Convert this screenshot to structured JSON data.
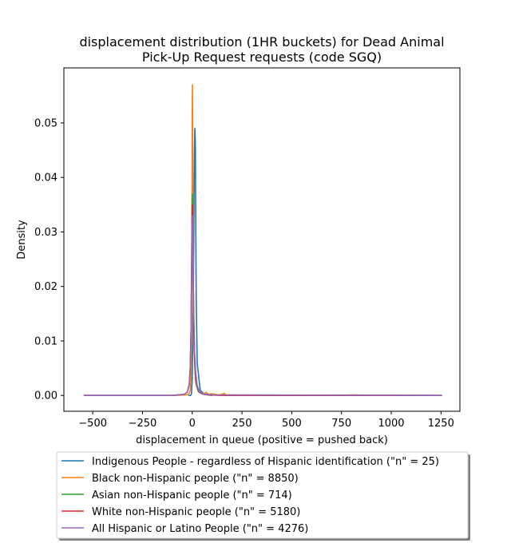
{
  "chart_data": {
    "type": "line",
    "title": [
      "displacement distribution (1HR buckets) for Dead Animal",
      "Pick-Up Request requests (code SGQ)"
    ],
    "xlabel": "displacement in queue (positive = pushed back)",
    "ylabel": "Density",
    "xlim": [
      -645,
      1345
    ],
    "ylim": [
      -0.0029,
      0.0601
    ],
    "x_ticks": [
      -500,
      -250,
      0,
      250,
      500,
      750,
      1000,
      1250
    ],
    "x_tick_labels": [
      "−500",
      "−250",
      "0",
      "250",
      "500",
      "750",
      "1000",
      "1250"
    ],
    "y_ticks": [
      0.0,
      0.01,
      0.02,
      0.03,
      0.04,
      0.05
    ],
    "y_tick_labels": [
      "0.00",
      "0.01",
      "0.02",
      "0.03",
      "0.04",
      "0.05"
    ],
    "grid": false,
    "legend_position": "below-plot",
    "series": [
      {
        "name": "Indigenous People - regardless of Hispanic identification (\"n\" = 25)",
        "color": "#1f77b4",
        "x": [
          -20,
          -8,
          -4,
          0,
          4,
          8,
          11,
          13,
          14,
          15,
          16,
          18,
          20,
          25,
          40,
          60,
          100
        ],
        "y": [
          0.0,
          0.0,
          0.0003,
          0.003,
          0.012,
          0.03,
          0.044,
          0.049,
          0.048,
          0.047,
          0.045,
          0.03,
          0.018,
          0.006,
          0.001,
          0.0002,
          0.0
        ]
      },
      {
        "name": "Black non-Hispanic people (\"n\" = 8850)",
        "color": "#ff7f0e",
        "x": [
          -545,
          -100,
          -30,
          -20,
          -15,
          -10,
          -6,
          -3,
          -1,
          0,
          1,
          2,
          3,
          5,
          8,
          12,
          16,
          20,
          25,
          30,
          40,
          50,
          60,
          70,
          80,
          100,
          130,
          150,
          160,
          170,
          200,
          300,
          500,
          750,
          800,
          1000,
          1255
        ],
        "y": [
          0.0,
          0.0,
          0.0001,
          0.0002,
          0.0004,
          0.001,
          0.003,
          0.012,
          0.035,
          0.052,
          0.057,
          0.05,
          0.04,
          0.025,
          0.012,
          0.006,
          0.003,
          0.002,
          0.0015,
          0.0008,
          0.0005,
          0.0004,
          0.0003,
          0.0006,
          0.0002,
          0.0003,
          0.0001,
          0.0002,
          0.0004,
          0.0001,
          0.0001,
          0.0,
          0.0,
          0.0,
          0.0001,
          0.0,
          0.0
        ]
      },
      {
        "name": "Asian non-Hispanic people (\"n\" = 714)",
        "color": "#2ca02c",
        "x": [
          -545,
          -100,
          -40,
          -25,
          -15,
          -10,
          -6,
          -3,
          -1,
          0,
          1,
          3,
          6,
          10,
          15,
          20,
          30,
          50,
          100,
          1255
        ],
        "y": [
          0.0,
          0.0,
          0.0002,
          0.0006,
          0.002,
          0.005,
          0.012,
          0.024,
          0.034,
          0.037,
          0.035,
          0.028,
          0.018,
          0.009,
          0.004,
          0.002,
          0.0008,
          0.0003,
          0.0001,
          0.0
        ]
      },
      {
        "name": "White non-Hispanic people (\"n\" = 5180)",
        "color": "#d62728",
        "x": [
          -545,
          -100,
          -40,
          -25,
          -15,
          -10,
          -6,
          -3,
          -1,
          0,
          1,
          2,
          4,
          8,
          12,
          18,
          25,
          35,
          50,
          80,
          150,
          1255
        ],
        "y": [
          0.0,
          0.0,
          0.0002,
          0.0006,
          0.002,
          0.005,
          0.012,
          0.024,
          0.033,
          0.035,
          0.034,
          0.03,
          0.024,
          0.013,
          0.007,
          0.003,
          0.0015,
          0.0006,
          0.0003,
          0.0001,
          0.0,
          0.0
        ]
      },
      {
        "name": "All Hispanic or Latino People (\"n\" = 4276)",
        "color": "#9467bd",
        "x": [
          -545,
          -100,
          -40,
          -25,
          -15,
          -10,
          -6,
          -3,
          -1,
          0,
          2,
          4,
          7,
          12,
          18,
          25,
          35,
          50,
          100,
          1255
        ],
        "y": [
          0.0,
          0.0,
          0.0002,
          0.0006,
          0.002,
          0.005,
          0.012,
          0.022,
          0.03,
          0.033,
          0.03,
          0.024,
          0.016,
          0.008,
          0.004,
          0.0018,
          0.0008,
          0.0003,
          0.0001,
          0.0
        ]
      }
    ]
  }
}
